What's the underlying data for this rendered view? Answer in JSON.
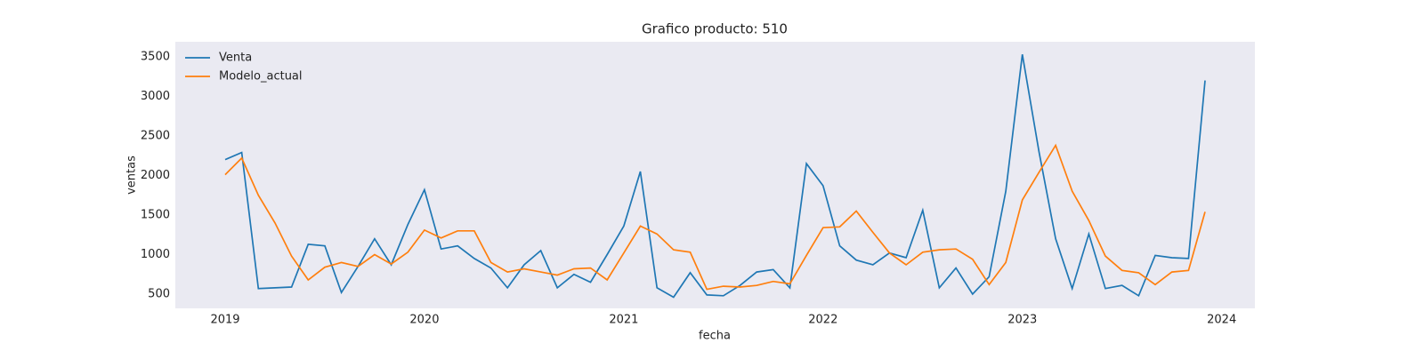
{
  "chart_data": {
    "type": "line",
    "title": "Grafico producto: 510",
    "xlabel": "fecha",
    "ylabel": "ventas",
    "x": [
      "2019-01",
      "2019-02",
      "2019-03",
      "2019-04",
      "2019-05",
      "2019-06",
      "2019-07",
      "2019-08",
      "2019-09",
      "2019-10",
      "2019-11",
      "2019-12",
      "2020-01",
      "2020-02",
      "2020-03",
      "2020-04",
      "2020-05",
      "2020-06",
      "2020-07",
      "2020-08",
      "2020-09",
      "2020-10",
      "2020-11",
      "2020-12",
      "2021-01",
      "2021-02",
      "2021-03",
      "2021-04",
      "2021-05",
      "2021-06",
      "2021-07",
      "2021-08",
      "2021-09",
      "2021-10",
      "2021-11",
      "2021-12",
      "2022-01",
      "2022-02",
      "2022-03",
      "2022-04",
      "2022-05",
      "2022-06",
      "2022-07",
      "2022-08",
      "2022-09",
      "2022-10",
      "2022-11",
      "2022-12",
      "2023-01",
      "2023-02",
      "2023-03",
      "2023-04",
      "2023-05",
      "2023-06",
      "2023-07",
      "2023-08",
      "2023-09",
      "2023-10",
      "2023-11",
      "2023-12"
    ],
    "series": [
      {
        "name": "Venta",
        "color": "#1f77b4",
        "values": [
          2200,
          2290,
          570,
          580,
          590,
          1130,
          1110,
          520,
          850,
          1200,
          870,
          1380,
          1820,
          1070,
          1110,
          950,
          830,
          580,
          870,
          1050,
          580,
          750,
          650,
          1000,
          1360,
          2050,
          580,
          460,
          770,
          490,
          480,
          610,
          780,
          810,
          580,
          2150,
          1870,
          1110,
          930,
          870,
          1020,
          960,
          1560,
          580,
          830,
          500,
          720,
          1800,
          3530,
          2300,
          1200,
          570,
          1260,
          570,
          610,
          480,
          990,
          960,
          950,
          3200
        ]
      },
      {
        "name": "Modelo_actual",
        "color": "#ff7f0e",
        "values": [
          2010,
          2220,
          1750,
          1400,
          980,
          680,
          840,
          900,
          850,
          1000,
          880,
          1030,
          1310,
          1210,
          1300,
          1300,
          900,
          780,
          820,
          780,
          740,
          820,
          830,
          680,
          1020,
          1360,
          1260,
          1060,
          1030,
          560,
          600,
          590,
          610,
          660,
          630,
          990,
          1340,
          1350,
          1550,
          1280,
          1020,
          870,
          1030,
          1060,
          1070,
          940,
          620,
          900,
          1690,
          2040,
          2380,
          1800,
          1430,
          980,
          800,
          770,
          620,
          780,
          800,
          1540
        ]
      }
    ],
    "xlim": [
      "2018-10",
      "2024-03"
    ],
    "xticks": [
      {
        "value": "2019-01",
        "label": "2019"
      },
      {
        "value": "2020-01",
        "label": "2020"
      },
      {
        "value": "2021-01",
        "label": "2021"
      },
      {
        "value": "2022-01",
        "label": "2022"
      },
      {
        "value": "2023-01",
        "label": "2023"
      },
      {
        "value": "2024-01",
        "label": "2024"
      }
    ],
    "ylim": [
      320,
      3690
    ],
    "yticks": [
      500,
      1000,
      1500,
      2000,
      2500,
      3000,
      3500
    ],
    "grid": false,
    "legend": "upper-left"
  }
}
